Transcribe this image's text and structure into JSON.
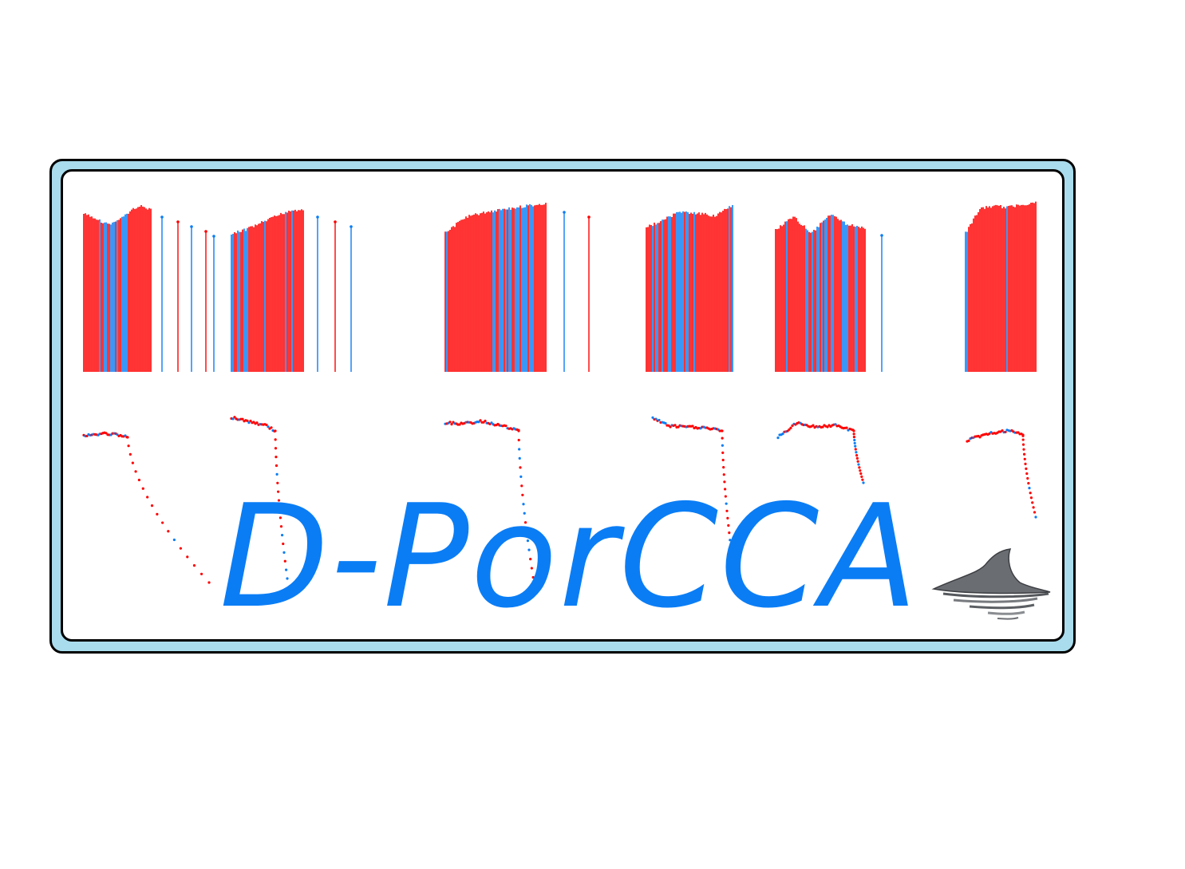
{
  "logo": {
    "text": "D-PorCCA",
    "text_color": "#0a7df5",
    "frame_fill": "#a9dcec",
    "frame_border": "#000000"
  },
  "colors": {
    "red": "#ff0000",
    "blue": "#0a7df5"
  },
  "icons": {
    "dolphin": "dolphin-fin-icon"
  }
}
